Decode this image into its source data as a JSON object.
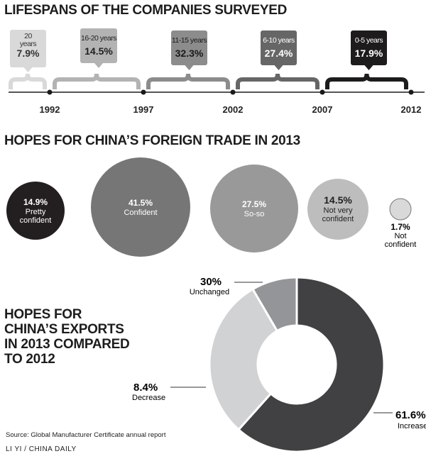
{
  "titles": {
    "lifespans": "LIFESPANS OF THE COMPANIES SURVEYED",
    "trade": "HOPES FOR CHINA’S FOREIGN TRADE IN 2013",
    "exports": [
      "HOPES FOR",
      "CHINA’S EXPORTS",
      "IN 2013 COMPARED",
      "TO 2012"
    ]
  },
  "source": "Source:   Global Manufacturer Certificate annual report",
  "credit": "LI YI / CHINA DAILY",
  "chart_data": [
    {
      "type": "timeline",
      "title": "LIFESPANS OF THE COMPANIES SURVEYED",
      "ticks": [
        "1992",
        "1997",
        "2002",
        "2007",
        "2012"
      ],
      "items": [
        {
          "label": [
            "20",
            "years"
          ],
          "value": "7.9%",
          "color": "#d9d9d9",
          "text": "#333333"
        },
        {
          "label": [
            "16-20 years"
          ],
          "value": "14.5%",
          "color": "#b3b3b3",
          "text": "#222222"
        },
        {
          "label": [
            "11-15 years"
          ],
          "value": "32.3%",
          "color": "#8c8c8c",
          "text": "#1a1a1a"
        },
        {
          "label": [
            "6-10 years"
          ],
          "value": "27.4%",
          "color": "#666666",
          "text": "#ffffff"
        },
        {
          "label": [
            "0-5 years"
          ],
          "value": "17.9%",
          "color": "#1e1b1c",
          "text": "#ffffff"
        }
      ]
    },
    {
      "type": "bubble",
      "title": "HOPES FOR CHINA’S FOREIGN TRADE IN 2013",
      "items": [
        {
          "value": "14.9%",
          "label": [
            "Pretty",
            "confident"
          ],
          "color": "#231f20"
        },
        {
          "value": "41.5%",
          "label": [
            "Confident"
          ],
          "color": "#767676"
        },
        {
          "value": "27.5%",
          "label": [
            "So-so"
          ],
          "color": "#999999"
        },
        {
          "value": "14.5%",
          "label": [
            "Not very",
            "confident"
          ],
          "color": "#bdbdbd"
        },
        {
          "value": "1.7%",
          "label": [
            "Not",
            "confident"
          ],
          "color": "#d9d9d9"
        }
      ]
    },
    {
      "type": "pie",
      "title": "HOPES FOR CHINA’S EXPORTS IN 2013 COMPARED TO 2012",
      "slices": [
        {
          "label": "Increase",
          "value": 61.6,
          "text": "61.6%",
          "color": "#414042"
        },
        {
          "label": "Decrease",
          "value": 8.4,
          "text": "8.4%",
          "color": "#d1d2d4"
        },
        {
          "label": "Unchanged",
          "value": 30,
          "text": "30%",
          "color": "#939598"
        }
      ]
    }
  ]
}
